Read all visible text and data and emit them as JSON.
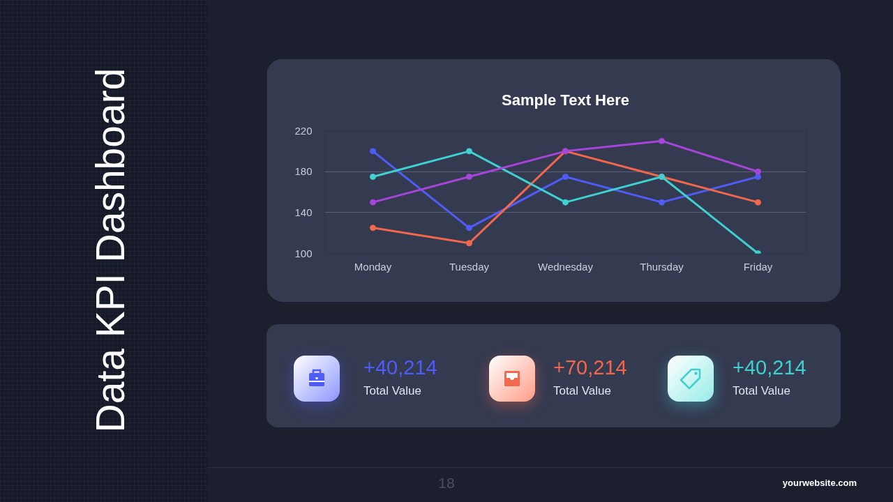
{
  "chart_data": [
    {
      "type": "line",
      "title": "Sample Text Here",
      "categories": [
        "Monday",
        "Tuesday",
        "Wednesday",
        "Thursday",
        "Friday"
      ],
      "series": [
        {
          "color": "#4f5cf5",
          "values": [
            200,
            125,
            175,
            150,
            175
          ]
        },
        {
          "color": "#f2684d",
          "values": [
            125,
            110,
            200,
            175,
            150
          ]
        },
        {
          "color": "#3fd0cf",
          "values": [
            175,
            200,
            150,
            175,
            100
          ]
        },
        {
          "color": "#a645da",
          "values": [
            150,
            175,
            200,
            210,
            180
          ]
        }
      ],
      "ylim": [
        100,
        220
      ],
      "yticks": [
        100,
        140,
        180,
        220
      ],
      "grid": "y",
      "marker": "circle",
      "line_style": "solid"
    },
    {
      "type": "other",
      "title": "Data KPI Dashboard",
      "annotations": [
        "+40,214",
        "Total Value",
        "+70,214",
        "Total Value",
        "+40,214",
        "Total Value",
        "18",
        "yourwebsite.com"
      ]
    }
  ]
}
